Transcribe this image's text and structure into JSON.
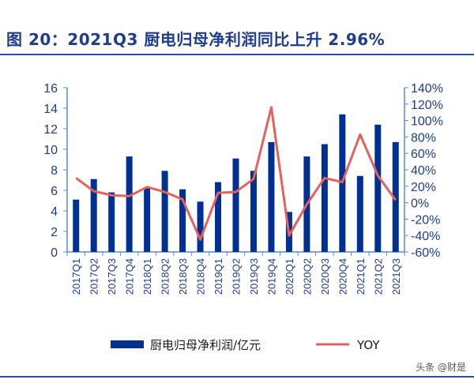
{
  "title": "图 20：2021Q3 厨电归母净利润同比上升 2.96%",
  "watermark": "头条 @财是",
  "colors": {
    "bar": "#003192",
    "line": "#e8605c",
    "axis": "#5b8cc8"
  },
  "chart_data": {
    "type": "bar+line",
    "categories": [
      "2017Q1",
      "2017Q2",
      "2017Q3",
      "2017Q4",
      "2018Q1",
      "2018Q2",
      "2018Q3",
      "2018Q4",
      "2019Q1",
      "2019Q2",
      "2019Q3",
      "2019Q4",
      "2020Q1",
      "2020Q2",
      "2020Q3",
      "2020Q4",
      "2021Q1",
      "2021Q2",
      "2021Q3"
    ],
    "series": [
      {
        "name": "厨电归母净利润/亿元",
        "type": "bar",
        "axis": "left",
        "values": [
          5.1,
          7.1,
          5.8,
          9.3,
          6.2,
          7.9,
          6.1,
          4.9,
          6.8,
          9.1,
          7.9,
          10.7,
          3.9,
          9.3,
          10.5,
          13.4,
          7.4,
          12.4,
          10.7
        ]
      },
      {
        "name": "YOY",
        "type": "line",
        "axis": "right",
        "unit": "%",
        "values": [
          30,
          14,
          9,
          8,
          19,
          13,
          4,
          -45,
          12,
          13,
          29,
          116,
          -40,
          -2,
          30,
          25,
          83,
          33,
          2.96
        ]
      }
    ],
    "left_axis": {
      "ylim": [
        0,
        16
      ],
      "ticks": [
        "0",
        "2",
        "4",
        "6",
        "8",
        "10",
        "12",
        "14",
        "16"
      ]
    },
    "right_axis": {
      "ylim": [
        -60,
        140
      ],
      "ticks": [
        "-60%",
        "-40%",
        "-20%",
        "0%",
        "20%",
        "40%",
        "60%",
        "80%",
        "100%",
        "120%",
        "140%"
      ]
    },
    "legend": "bottom",
    "grid": false
  }
}
